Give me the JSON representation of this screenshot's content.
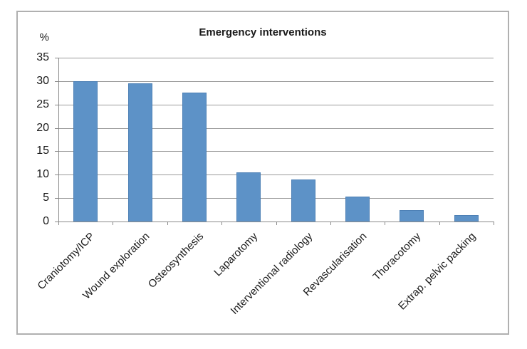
{
  "chart_data": {
    "type": "bar",
    "title": "Emergency interventions",
    "ylabel": "%",
    "xlabel": "",
    "categories": [
      "Craniotomy/ICP",
      "Wound exploration",
      "Osteosynthesis",
      "Laparotomy",
      "Interventional radiology",
      "Revascularisation",
      "Thoracotomy",
      "Extrap. pelvic packing"
    ],
    "values": [
      30,
      29.5,
      27.5,
      10.5,
      9,
      5.3,
      2.5,
      1.3
    ],
    "ylim": [
      0,
      35
    ],
    "yticks": [
      0,
      5,
      10,
      15,
      20,
      25,
      30,
      35
    ],
    "grid": true,
    "legend": false,
    "bar_color": "#5d92c7",
    "bar_border_color": "#4d80b5",
    "grid_color": "#9a9a9a",
    "axis_color": "#8a8a8a",
    "text_color": "#1a1a1a",
    "chart_border_color": "#b0b0b0",
    "background_color": "#ffffff"
  }
}
